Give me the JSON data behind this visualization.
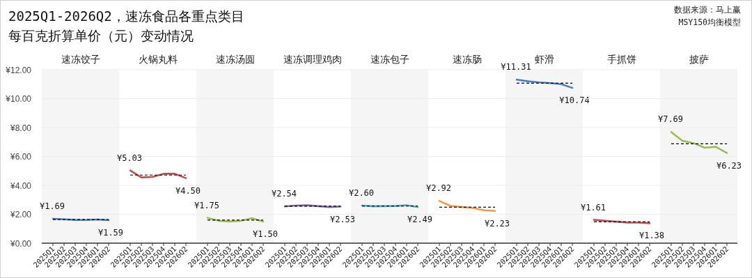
{
  "chart_data": [
    {
      "type": "other",
      "title": "2025Q1-2026Q2，速冻食品各重点类目",
      "subtitle": "每百克折算单价（元）变动情况",
      "annotations": [
        "数据来源：马上赢",
        "MSY150均衡模型"
      ]
    },
    {
      "type": "line",
      "title": "速冻饺子",
      "categories": [
        "2025Q1",
        "2025Q2",
        "2025Q3",
        "2025Q4",
        "2026Q1",
        "2026Q2"
      ],
      "values": [
        1.69,
        1.65,
        1.61,
        1.6,
        1.64,
        1.59
      ],
      "color": "#4a7cc7",
      "value_labels": [
        "¥1.69",
        null,
        null,
        null,
        null,
        "¥1.59"
      ],
      "ylim": [
        0,
        12
      ],
      "yticks": [
        {
          "value": 0,
          "label": "¥0.00"
        },
        {
          "value": 2,
          "label": "¥2.00"
        },
        {
          "value": 4,
          "label": "¥4.00"
        },
        {
          "value": 6,
          "label": "¥6.00"
        },
        {
          "value": 8,
          "label": "¥8.00"
        },
        {
          "value": 10,
          "label": "¥10.00"
        },
        {
          "value": 12,
          "label": "¥12.00"
        }
      ],
      "grid": "y",
      "ref_lines": [
        {
          "axis": "y",
          "value": 1.63,
          "color": "#000000",
          "line_style": "dashed"
        }
      ]
    },
    {
      "type": "line",
      "title": "火锅丸料",
      "categories": [
        "2025Q1",
        "2025Q2",
        "2025Q3",
        "2025Q4",
        "2026Q1",
        "2026Q2"
      ],
      "values": [
        5.03,
        4.55,
        4.58,
        4.8,
        4.8,
        4.5
      ],
      "color": "#c0504d",
      "value_labels": [
        "¥5.03",
        null,
        null,
        null,
        null,
        "¥4.50"
      ],
      "ylim": [
        0,
        12
      ],
      "yticks": [
        {
          "value": 0,
          "label": null
        },
        {
          "value": 2,
          "label": null
        },
        {
          "value": 4,
          "label": null
        },
        {
          "value": 6,
          "label": null
        },
        {
          "value": 8,
          "label": null
        },
        {
          "value": 10,
          "label": null
        },
        {
          "value": 12,
          "label": null
        }
      ],
      "grid": "y",
      "tick_labels": "x",
      "ref_lines": [
        {
          "axis": "y",
          "value": 4.71,
          "color": "#000000",
          "line_style": "dashed"
        }
      ]
    },
    {
      "type": "line",
      "title": "速冻汤圆",
      "categories": [
        "2025Q1",
        "2025Q2",
        "2025Q3",
        "2025Q4",
        "2026Q1",
        "2026Q2"
      ],
      "values": [
        1.75,
        1.55,
        1.5,
        1.55,
        1.72,
        1.5
      ],
      "color": "#9bbb59",
      "value_labels": [
        "¥1.75",
        null,
        null,
        null,
        null,
        "¥1.50"
      ],
      "ylim": [
        0,
        12
      ],
      "yticks": [
        {
          "value": 0,
          "label": null
        },
        {
          "value": 2,
          "label": null
        },
        {
          "value": 4,
          "label": null
        },
        {
          "value": 6,
          "label": null
        },
        {
          "value": 8,
          "label": null
        },
        {
          "value": 10,
          "label": null
        },
        {
          "value": 12,
          "label": null
        }
      ],
      "grid": "y",
      "tick_labels": "x",
      "ref_lines": [
        {
          "axis": "y",
          "value": 1.6,
          "color": "#000000",
          "line_style": "dashed"
        }
      ]
    },
    {
      "type": "line",
      "title": "速冻调理鸡肉",
      "categories": [
        "2025Q1",
        "2025Q2",
        "2025Q3",
        "2025Q4",
        "2026Q1",
        "2026Q2"
      ],
      "values": [
        2.54,
        2.6,
        2.62,
        2.56,
        2.5,
        2.53
      ],
      "color": "#8064a2",
      "value_labels": [
        "¥2.54",
        null,
        null,
        null,
        null,
        "¥2.53"
      ],
      "ylim": [
        0,
        12
      ],
      "yticks": [
        {
          "value": 0,
          "label": null
        },
        {
          "value": 2,
          "label": null
        },
        {
          "value": 4,
          "label": null
        },
        {
          "value": 6,
          "label": null
        },
        {
          "value": 8,
          "label": null
        },
        {
          "value": 10,
          "label": null
        },
        {
          "value": 12,
          "label": null
        }
      ],
      "grid": "y",
      "tick_labels": "x",
      "ref_lines": [
        {
          "axis": "y",
          "value": 2.56,
          "color": "#000000",
          "line_style": "dashed"
        }
      ]
    },
    {
      "type": "line",
      "title": "速冻包子",
      "categories": [
        "2025Q1",
        "2025Q2",
        "2025Q3",
        "2025Q4",
        "2026Q1",
        "2026Q2"
      ],
      "values": [
        2.6,
        2.55,
        2.56,
        2.57,
        2.63,
        2.49
      ],
      "color": "#4bacc6",
      "value_labels": [
        "¥2.60",
        null,
        null,
        null,
        null,
        "¥2.49"
      ],
      "ylim": [
        0,
        12
      ],
      "yticks": [
        {
          "value": 0,
          "label": null
        },
        {
          "value": 2,
          "label": null
        },
        {
          "value": 4,
          "label": null
        },
        {
          "value": 6,
          "label": null
        },
        {
          "value": 8,
          "label": null
        },
        {
          "value": 10,
          "label": null
        },
        {
          "value": 12,
          "label": null
        }
      ],
      "grid": "y",
      "tick_labels": "x",
      "ref_lines": [
        {
          "axis": "y",
          "value": 2.57,
          "color": "#000000",
          "line_style": "dashed"
        }
      ]
    },
    {
      "type": "line",
      "title": "速冻肠",
      "categories": [
        "2025Q1",
        "2025Q2",
        "2025Q3",
        "2025Q4",
        "2026Q1",
        "2026Q2"
      ],
      "values": [
        2.92,
        2.58,
        2.5,
        2.43,
        2.28,
        2.23
      ],
      "color": "#f79646",
      "value_labels": [
        "¥2.92",
        null,
        null,
        null,
        null,
        "¥2.23"
      ],
      "ylim": [
        0,
        12
      ],
      "yticks": [
        {
          "value": 0,
          "label": null
        },
        {
          "value": 2,
          "label": null
        },
        {
          "value": 4,
          "label": null
        },
        {
          "value": 6,
          "label": null
        },
        {
          "value": 8,
          "label": null
        },
        {
          "value": 10,
          "label": null
        },
        {
          "value": 12,
          "label": null
        }
      ],
      "grid": "y",
      "tick_labels": "x",
      "ref_lines": [
        {
          "axis": "y",
          "value": 2.49,
          "color": "#000000",
          "line_style": "dashed"
        }
      ]
    },
    {
      "type": "line",
      "title": "虾滑",
      "categories": [
        "2025Q1",
        "2025Q2",
        "2025Q3",
        "2025Q4",
        "2026Q1",
        "2026Q2"
      ],
      "values": [
        11.31,
        11.2,
        11.12,
        11.07,
        11.0,
        10.74
      ],
      "color": "#4a7cc7",
      "value_labels": [
        "¥11.31",
        null,
        null,
        null,
        null,
        "¥10.74"
      ],
      "ylim": [
        0,
        12
      ],
      "yticks": [
        {
          "value": 0,
          "label": null
        },
        {
          "value": 2,
          "label": null
        },
        {
          "value": 4,
          "label": null
        },
        {
          "value": 6,
          "label": null
        },
        {
          "value": 8,
          "label": null
        },
        {
          "value": 10,
          "label": null
        },
        {
          "value": 12,
          "label": null
        }
      ],
      "grid": "y",
      "tick_labels": "x",
      "ref_lines": [
        {
          "axis": "y",
          "value": 11.07,
          "color": "#000000",
          "line_style": "dashed"
        }
      ]
    },
    {
      "type": "line",
      "title": "手抓饼",
      "categories": [
        "2025Q1",
        "2025Q2",
        "2025Q3",
        "2025Q4",
        "2026Q1",
        "2026Q2"
      ],
      "values": [
        1.61,
        1.55,
        1.49,
        1.43,
        1.42,
        1.38
      ],
      "color": "#c0504d",
      "value_labels": [
        "¥1.61",
        null,
        null,
        null,
        null,
        "¥1.38"
      ],
      "ylim": [
        0,
        12
      ],
      "yticks": [
        {
          "value": 0,
          "label": null
        },
        {
          "value": 2,
          "label": null
        },
        {
          "value": 4,
          "label": null
        },
        {
          "value": 6,
          "label": null
        },
        {
          "value": 8,
          "label": null
        },
        {
          "value": 10,
          "label": null
        },
        {
          "value": 12,
          "label": null
        }
      ],
      "grid": "y",
      "tick_labels": "x",
      "ref_lines": [
        {
          "axis": "y",
          "value": 1.48,
          "color": "#000000",
          "line_style": "dashed"
        }
      ]
    },
    {
      "type": "line",
      "title": "披萨",
      "categories": [
        "2025Q1",
        "2025Q2",
        "2025Q3",
        "2025Q4",
        "2026Q1",
        "2026Q2"
      ],
      "values": [
        7.69,
        7.08,
        6.92,
        6.6,
        6.67,
        6.23
      ],
      "color": "#9bbb59",
      "value_labels": [
        "¥7.69",
        null,
        null,
        null,
        null,
        "¥6.23"
      ],
      "ylim": [
        0,
        12
      ],
      "yticks": [
        {
          "value": 0,
          "label": null
        },
        {
          "value": 2,
          "label": null
        },
        {
          "value": 4,
          "label": null
        },
        {
          "value": 6,
          "label": null
        },
        {
          "value": 8,
          "label": null
        },
        {
          "value": 10,
          "label": null
        },
        {
          "value": 12,
          "label": null
        }
      ],
      "grid": "y",
      "tick_labels": "x",
      "ref_lines": [
        {
          "axis": "y",
          "value": 6.87,
          "color": "#000000",
          "line_style": "dashed"
        }
      ]
    }
  ]
}
